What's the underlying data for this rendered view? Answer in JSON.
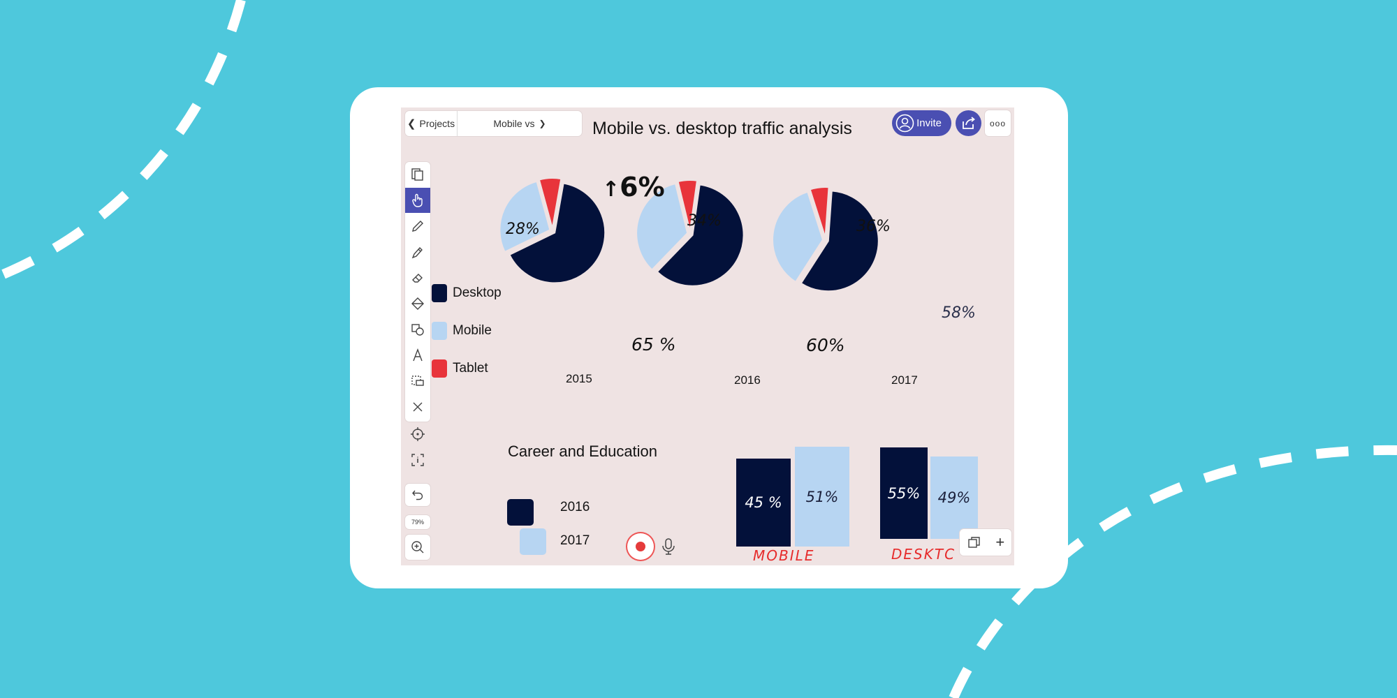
{
  "header": {
    "back_label": "Projects",
    "doc_dropdown": "Mobile vs",
    "title": "Mobile vs. desktop traffic analysis",
    "invite_label": "Invite",
    "more_label": "ooo"
  },
  "toolbar": {
    "tools": [
      "pages-icon",
      "hand-pointer-icon",
      "pencil-icon",
      "marker-icon",
      "eraser-icon",
      "fill-icon",
      "shapes-icon",
      "text-icon",
      "selection-icon",
      "close-icon",
      "target-icon",
      "info-select-icon"
    ],
    "zoom_label": "79%"
  },
  "legend": [
    {
      "label": "Desktop",
      "color": "#03113a"
    },
    {
      "label": "Mobile",
      "color": "#b7d5f2"
    },
    {
      "label": "Tablet",
      "color": "#e8343b"
    }
  ],
  "annotations": {
    "growth": "6%",
    "p2015_mobile": "28%",
    "p2015_desktop": "65 %",
    "p2016_mobile": "34%",
    "p2016_desktop": "60%",
    "p2017_mobile": "36%",
    "p2017_desktop": "58%"
  },
  "career": {
    "title": "Career and Education",
    "legend": [
      {
        "label": "2016",
        "color": "#03113a"
      },
      {
        "label": "2017",
        "color": "#b7d5f2"
      }
    ],
    "groups": [
      {
        "label": "MOBILE",
        "bars": [
          {
            "label": "45 %",
            "value": 45
          },
          {
            "label": "51%",
            "value": 51
          }
        ]
      },
      {
        "label": "DESKTC",
        "bars": [
          {
            "label": "55%",
            "value": 55
          },
          {
            "label": "49%",
            "value": 49
          }
        ]
      }
    ]
  },
  "chart_data": [
    {
      "type": "pie",
      "title": "2015",
      "categories": [
        "Desktop",
        "Mobile",
        "Tablet"
      ],
      "values": [
        65,
        28,
        7
      ],
      "colors": [
        "#03113a",
        "#b7d5f2",
        "#e8343b"
      ]
    },
    {
      "type": "pie",
      "title": "2016",
      "categories": [
        "Desktop",
        "Mobile",
        "Tablet"
      ],
      "values": [
        60,
        34,
        6
      ],
      "colors": [
        "#03113a",
        "#b7d5f2",
        "#e8343b"
      ]
    },
    {
      "type": "pie",
      "title": "2017",
      "categories": [
        "Desktop",
        "Mobile",
        "Tablet"
      ],
      "values": [
        58,
        36,
        6
      ],
      "colors": [
        "#03113a",
        "#b7d5f2",
        "#e8343b"
      ]
    }
  ],
  "colors": {
    "background": "#4ec8dc",
    "accent": "#4a4fb2",
    "canvas": "#efe3e3",
    "handwriting_red": "#e62b2b"
  }
}
